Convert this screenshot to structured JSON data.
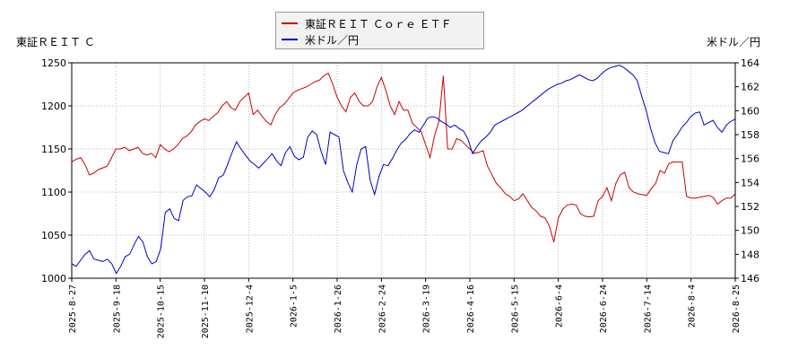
{
  "legend": {
    "items": [
      {
        "label": "東証ＲＥＩＴ Ｃｏｒｅ ＥＴＦ",
        "color": "#cc0000"
      },
      {
        "label": "米ドル／円",
        "color": "#0000cc"
      }
    ]
  },
  "axis_titles": {
    "left": "東証ＲＥＩＴ Ｃ",
    "right": "米ドル／円"
  },
  "chart_data": {
    "type": "line",
    "x_labels": [
      "2025-8-27",
      "2025-9-18",
      "2025-10-15",
      "2025-11-10",
      "2025-12-4",
      "2026-1-5",
      "2026-1-26",
      "2026-2-24",
      "2026-3-19",
      "2026-4-16",
      "2026-5-15",
      "2026-6-4",
      "2026-6-24",
      "2026-7-14",
      "2026-8-4",
      "2026-8-25"
    ],
    "y_left": {
      "ticks": [
        "1000",
        "1050",
        "1100",
        "1150",
        "1200",
        "1250"
      ],
      "range": [
        1000,
        1250
      ]
    },
    "y_right": {
      "ticks": [
        "146",
        "148",
        "150",
        "152",
        "154",
        "156",
        "158",
        "160",
        "162",
        "164"
      ],
      "range": [
        146,
        164
      ]
    },
    "grid": true,
    "series": [
      {
        "name": "東証ＲＥＩＴ Ｃｏｒｅ ＥＴＦ",
        "axis": "left",
        "color": "#cc0000",
        "values": [
          1135,
          1138,
          1140,
          1132,
          1120,
          1122,
          1126,
          1128,
          1130,
          1140,
          1150,
          1150,
          1152,
          1148,
          1150,
          1152,
          1145,
          1143,
          1145,
          1140,
          1155,
          1150,
          1147,
          1150,
          1155,
          1162,
          1165,
          1170,
          1178,
          1182,
          1185,
          1183,
          1188,
          1192,
          1200,
          1205,
          1198,
          1195,
          1205,
          1210,
          1215,
          1190,
          1195,
          1188,
          1182,
          1178,
          1190,
          1198,
          1202,
          1208,
          1215,
          1218,
          1220,
          1222,
          1225,
          1228,
          1230,
          1235,
          1238,
          1225,
          1210,
          1200,
          1193,
          1210,
          1215,
          1205,
          1200,
          1200,
          1205,
          1222,
          1233,
          1218,
          1200,
          1190,
          1205,
          1195,
          1195,
          1180,
          1175,
          1170,
          1155,
          1140,
          1165,
          1182,
          1235,
          1150,
          1150,
          1162,
          1160,
          1155,
          1150,
          1145,
          1146,
          1148,
          1130,
          1120,
          1110,
          1105,
          1098,
          1095,
          1090,
          1092,
          1098,
          1090,
          1082,
          1078,
          1072,
          1070,
          1060,
          1042,
          1070,
          1080,
          1085,
          1086,
          1085,
          1075,
          1072,
          1071,
          1072,
          1090,
          1095,
          1105,
          1090,
          1110,
          1120,
          1123,
          1105,
          1100,
          1098,
          1097,
          1096,
          1104,
          1110,
          1125,
          1122,
          1133,
          1135,
          1135,
          1135,
          1095,
          1093,
          1093,
          1094,
          1095,
          1096,
          1094,
          1086,
          1090,
          1093,
          1093,
          1098
        ]
      },
      {
        "name": "米ドル／円",
        "axis": "right",
        "color": "#0000cc",
        "values": [
          147.2,
          147.0,
          147.5,
          148.0,
          148.3,
          147.6,
          147.5,
          147.4,
          147.6,
          147.2,
          146.4,
          147.0,
          147.8,
          148.0,
          148.8,
          149.5,
          149.0,
          147.8,
          147.2,
          147.4,
          148.5,
          151.5,
          151.8,
          151.0,
          150.8,
          152.5,
          152.8,
          152.9,
          153.8,
          153.5,
          153.2,
          152.8,
          153.4,
          154.4,
          154.6,
          155.5,
          156.5,
          157.4,
          156.8,
          156.3,
          155.8,
          155.5,
          155.2,
          155.6,
          156.0,
          156.4,
          155.8,
          155.4,
          156.5,
          157.0,
          156.2,
          155.9,
          156.1,
          157.8,
          158.3,
          158.0,
          156.6,
          155.5,
          158.2,
          158.0,
          157.8,
          155.0,
          154.0,
          153.2,
          155.5,
          156.8,
          157.0,
          154.2,
          153.0,
          154.5,
          155.5,
          155.4,
          156.0,
          156.7,
          157.3,
          157.6,
          158.1,
          158.4,
          158.2,
          158.8,
          159.4,
          159.5,
          159.4,
          159.1,
          158.9,
          158.6,
          158.8,
          158.5,
          158.3,
          157.6,
          156.4,
          157.0,
          157.5,
          157.8,
          158.2,
          158.8,
          159.0,
          159.2,
          159.4,
          159.6,
          159.8,
          160.0,
          160.3,
          160.6,
          160.9,
          161.2,
          161.5,
          161.8,
          162.0,
          162.2,
          162.3,
          162.5,
          162.6,
          162.8,
          163.0,
          162.8,
          162.6,
          162.5,
          162.7,
          163.1,
          163.4,
          163.6,
          163.7,
          163.8,
          163.6,
          163.3,
          163.0,
          162.5,
          161.2,
          160.0,
          158.5,
          157.3,
          156.6,
          156.5,
          156.4,
          157.5,
          158.0,
          158.6,
          159.0,
          159.5,
          159.8,
          159.9,
          158.8,
          159.0,
          159.2,
          158.6,
          158.2,
          158.8,
          159.1,
          159.3
        ]
      }
    ]
  }
}
